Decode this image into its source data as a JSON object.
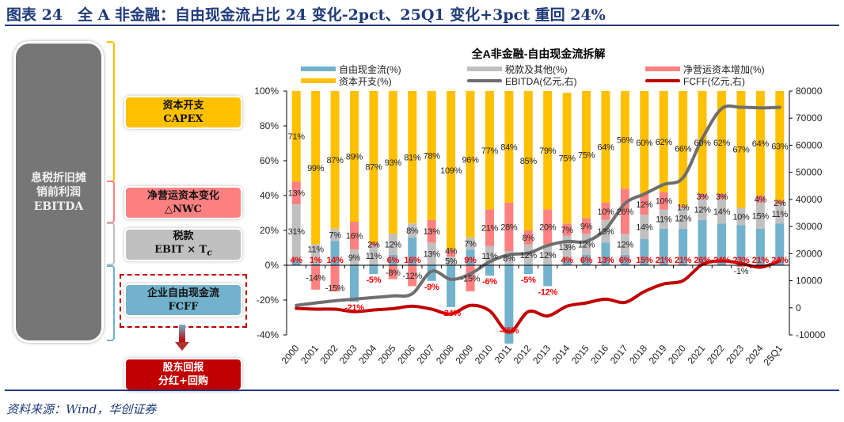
{
  "header": {
    "title": "图表 24　全 A 非金融：自由现金流占比 24 变化-2pct、25Q1 变化+3pct 重回 24%"
  },
  "footer": {
    "source": "资料来源：Wind，华创证券"
  },
  "diagram": {
    "ebitda": [
      "息税折旧摊",
      "销前利润",
      "EBITDA"
    ],
    "capex": [
      "资本开支",
      "CAPEX"
    ],
    "nwc": [
      "净营运资本变化",
      "△NWC"
    ],
    "tax": [
      "税款",
      "EBIT × T",
      "c"
    ],
    "fcff": [
      "企业自由现金流",
      "FCFF"
    ],
    "shareholder": [
      "股东回报",
      "分红+回购"
    ]
  },
  "colors": {
    "fcf": "#72b2cc",
    "tax": "#c0c0c0",
    "nwc": "#ff8080",
    "capex": "#ffc000",
    "ebitda": "#6e6e6e",
    "fcff": "#c00000",
    "title": "#1f3a7a"
  },
  "chart_data": {
    "type": "bar+line",
    "title": "全A非金融-自由现金流拆解",
    "legend": [
      "自由现金流(%)",
      "税款及其他(%)",
      "净营运资本增加(%)",
      "资本开支(%)",
      "EBITDA(亿元,右)",
      "FCFF(亿元,右)"
    ],
    "legend_position": "top",
    "categories": [
      "2000",
      "2001",
      "2002",
      "2003",
      "2004",
      "2005",
      "2006",
      "2007",
      "2008",
      "2009",
      "2010",
      "2011",
      "2012",
      "2013",
      "2014",
      "2015",
      "2016",
      "2017",
      "2018",
      "2019",
      "2020",
      "2021",
      "2022",
      "2023",
      "2024",
      "25Q1"
    ],
    "y_left": {
      "range": [
        -40,
        100
      ],
      "ticks": [
        "-40%",
        "-20%",
        "0%",
        "20%",
        "40%",
        "60%",
        "80%",
        "100%"
      ]
    },
    "y_right": {
      "range": [
        -10000,
        80000
      ],
      "ticks": [
        "-10000",
        "0",
        "10000",
        "20000",
        "30000",
        "40000",
        "50000",
        "60000",
        "70000",
        "80000"
      ]
    },
    "series": [
      {
        "name": "自由现金流(%)",
        "values": [
          4,
          1,
          14,
          -21,
          -5,
          6,
          16,
          -9,
          -24,
          9,
          -6,
          -45,
          -5,
          -12,
          4,
          6,
          13,
          6,
          15,
          21,
          21,
          26,
          24,
          23,
          21,
          24
        ]
      },
      {
        "name": "税款及其他(%)",
        "values": [
          31,
          11,
          7,
          9,
          11,
          12,
          8,
          13,
          5,
          7,
          11,
          8,
          12,
          12,
          13,
          12,
          13,
          12,
          14,
          11,
          12,
          12,
          14,
          10,
          15,
          11
        ]
      },
      {
        "name": "净营运资本增加(%)",
        "values": [
          13,
          -14,
          -15,
          16,
          2,
          -8,
          -12,
          13,
          4,
          -15,
          21,
          28,
          8,
          20,
          7,
          9,
          10,
          26,
          12,
          10,
          1,
          3,
          3,
          -1,
          4,
          2
        ]
      },
      {
        "name": "资本开支(%)",
        "values": [
          71,
          99,
          87,
          89,
          87,
          93,
          81,
          78,
          109,
          96,
          77,
          84,
          85,
          79,
          75,
          75,
          64,
          56,
          60,
          62,
          66,
          60,
          62,
          67,
          64,
          63
        ]
      },
      {
        "name": "EBITDA(亿元,右)",
        "values": [
          900,
          1800,
          2600,
          3200,
          3800,
          4400,
          5200,
          13500,
          10500,
          12500,
          17000,
          19600,
          20200,
          23000,
          24500,
          24500,
          29000,
          38500,
          42000,
          45500,
          48000,
          62500,
          73500,
          74000,
          73800,
          74000
        ]
      },
      {
        "name": "FCFF(亿元,右)",
        "values": [
          -200,
          -500,
          -500,
          -1400,
          -800,
          -300,
          600,
          -500,
          -2300,
          900,
          -1100,
          -9000,
          -1400,
          -3000,
          600,
          1800,
          3200,
          2000,
          6000,
          8800,
          10000,
          16000,
          17300,
          16400,
          15000,
          17300
        ]
      }
    ]
  }
}
